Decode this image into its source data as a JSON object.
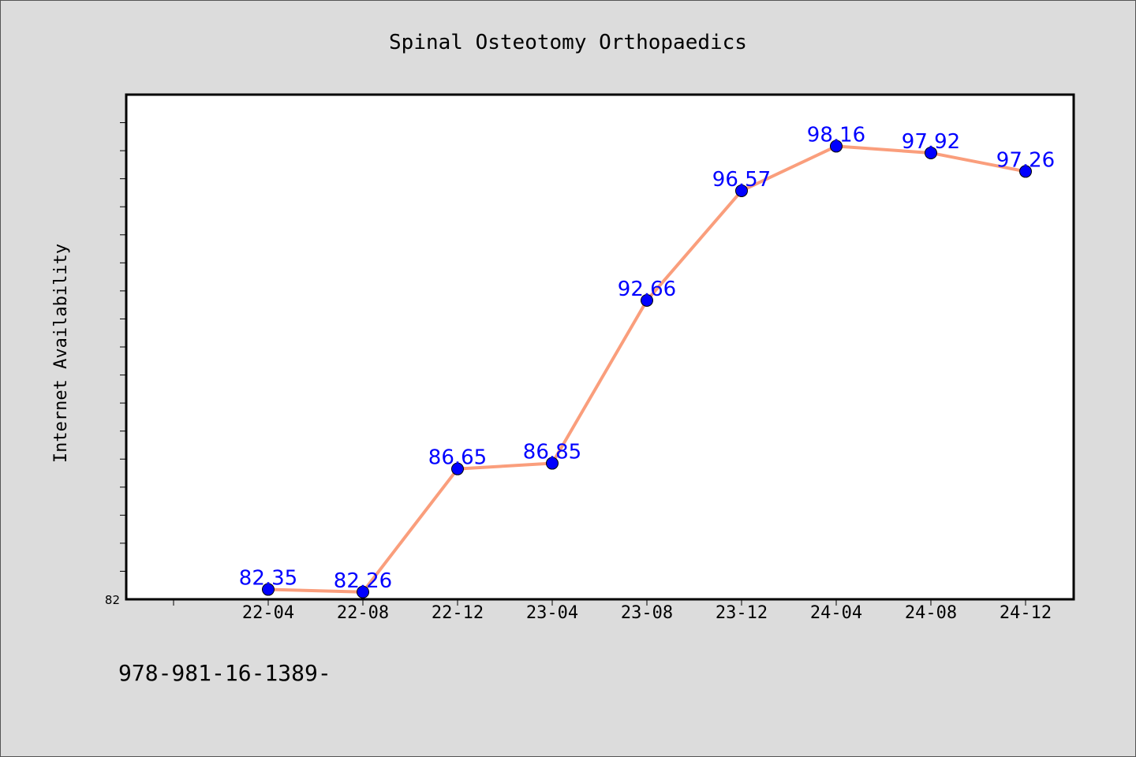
{
  "chart_data": {
    "type": "line",
    "title": "Spinal Osteotomy Orthopaedics",
    "ylabel": "Internet Availability",
    "xlabel": "",
    "categories": [
      "22-04",
      "22-08",
      "22-12",
      "23-04",
      "23-08",
      "23-12",
      "24-04",
      "24-08",
      "24-12"
    ],
    "values": [
      82.35,
      82.26,
      86.65,
      86.85,
      92.66,
      96.57,
      98.16,
      97.92,
      97.26
    ],
    "ylim": [
      82,
      100
    ],
    "y_min_label": "82",
    "grid": false,
    "legend": "none",
    "colors": {
      "line": "#fa9e7c",
      "marker": "#0000ff",
      "label": "#0000ff"
    }
  },
  "footer": {
    "text": "978-981-16-1389-"
  }
}
